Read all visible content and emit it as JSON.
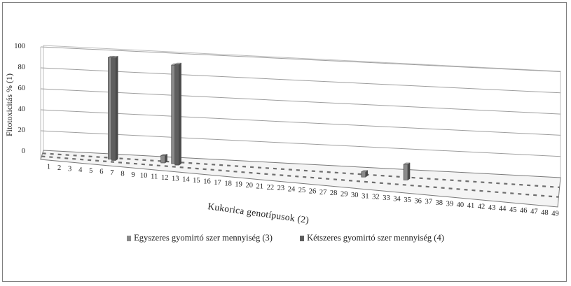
{
  "chart_data": {
    "type": "bar",
    "ylabel": "Fitotoxicitás % (1)",
    "xlabel": "Kukorica genotípusok (2)",
    "ylim": [
      0,
      100
    ],
    "yticks": [
      "0",
      "20",
      "40",
      "60",
      "80",
      "100"
    ],
    "grid": true,
    "legend_position": "bottom",
    "categories": [
      "1",
      "2",
      "3",
      "4",
      "5",
      "6",
      "7",
      "8",
      "9",
      "10",
      "11",
      "12",
      "13",
      "14",
      "15",
      "16",
      "17",
      "18",
      "19",
      "20",
      "21",
      "22",
      "23",
      "24",
      "25",
      "26",
      "27",
      "28",
      "29",
      "30",
      "31",
      "32",
      "33",
      "34",
      "35",
      "36",
      "37",
      "38",
      "39",
      "40",
      "41",
      "42",
      "43",
      "44",
      "45",
      "46",
      "47",
      "48",
      "49"
    ],
    "series": [
      {
        "name": "Egyszeres gyomirtó szer mennyiség (3)",
        "color": "#8a8a8a",
        "values": [
          0,
          0,
          0,
          0,
          0,
          0,
          97,
          0,
          0,
          0,
          0,
          7,
          94,
          0,
          0,
          0,
          0,
          0,
          0,
          0,
          0,
          0,
          0,
          0,
          0,
          0,
          0,
          0,
          0,
          0,
          5,
          0,
          0,
          0,
          15,
          0,
          0,
          0,
          0,
          0,
          0,
          0,
          0,
          0,
          0,
          0,
          0,
          0,
          0
        ]
      },
      {
        "name": "Kétszeres gyomirtó szer mennyiség (4)",
        "color": "#5e5e5e",
        "values": [
          0,
          0,
          0,
          0,
          0,
          0,
          98,
          0,
          0,
          0,
          0,
          0,
          96,
          0,
          0,
          0,
          0,
          0,
          0,
          0,
          0,
          0,
          0,
          0,
          0,
          0,
          0,
          0,
          0,
          0,
          0,
          0,
          0,
          0,
          0,
          0,
          0,
          0,
          0,
          0,
          0,
          0,
          0,
          0,
          0,
          0,
          0,
          0,
          0
        ]
      }
    ]
  }
}
